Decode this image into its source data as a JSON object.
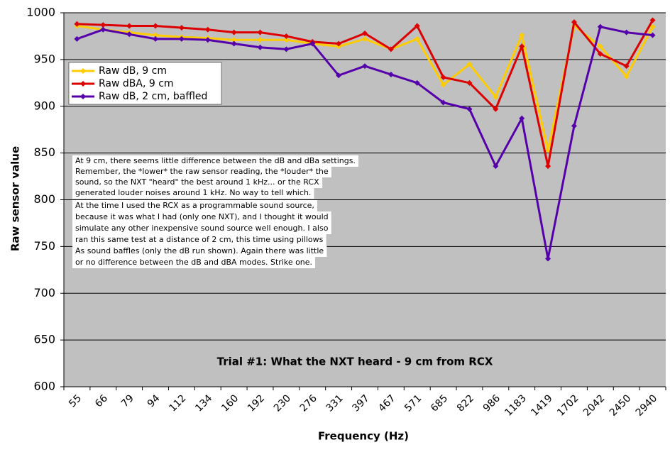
{
  "chart_data": {
    "type": "line",
    "title": "Trial #1: What the NXT heard - 9 cm from RCX",
    "x_label": "Frequency (Hz)",
    "y_label": "Raw sensor value",
    "categories": [
      "55",
      "66",
      "79",
      "94",
      "112",
      "134",
      "160",
      "192",
      "230",
      "276",
      "331",
      "397",
      "467",
      "571",
      "685",
      "822",
      "986",
      "1183",
      "1419",
      "1702",
      "2042",
      "2450",
      "2940"
    ],
    "series": [
      {
        "name": "Raw dB, 9 cm",
        "color": "#ffcc00",
        "values": [
          986,
          982,
          979,
          976,
          974,
          973,
          971,
          971,
          971,
          967,
          964,
          972,
          961,
          972,
          923,
          945,
          910,
          976,
          853,
          986,
          964,
          932,
          985
        ]
      },
      {
        "name": "Raw dBA, 9 cm",
        "color": "#dd0000",
        "values": [
          988,
          987,
          986,
          986,
          984,
          982,
          979,
          979,
          975,
          969,
          967,
          978,
          961,
          986,
          931,
          925,
          897,
          964,
          836,
          990,
          956,
          943,
          992
        ]
      },
      {
        "name": "Raw dB, 2 cm, baffled",
        "color": "#5500aa",
        "values": [
          972,
          982,
          977,
          972,
          972,
          971,
          967,
          963,
          961,
          967,
          933,
          943,
          934,
          925,
          904,
          897,
          836,
          887,
          737,
          879,
          985,
          979,
          976
        ]
      }
    ],
    "ylim": [
      600,
      1000
    ],
    "yticks": [
      600,
      650,
      700,
      750,
      800,
      850,
      900,
      950,
      1000
    ],
    "grid": true,
    "legend": "upper left",
    "annotation_lines": [
      "At 9 cm, there seems little difference between the dB and dBa settings.",
      "Remember, the *lower* the raw sensor reading, the *louder* the",
      "sound, so the NXT \"heard\" the best around 1 kHz... or the RCX",
      "generated louder noises around 1 kHz. No way to tell which.",
      "At the time I used the RCX as a programmable sound source,",
      "because it was what I had (only one NXT), and I thought it would",
      "simulate any other inexpensive sound source well enough. I also",
      "ran this same test at a distance of 2 cm, this time using pillows",
      "As sound baffles (only the dB run shown). Again there was little",
      "or no difference between the dB and dBA modes. Strike one."
    ]
  }
}
